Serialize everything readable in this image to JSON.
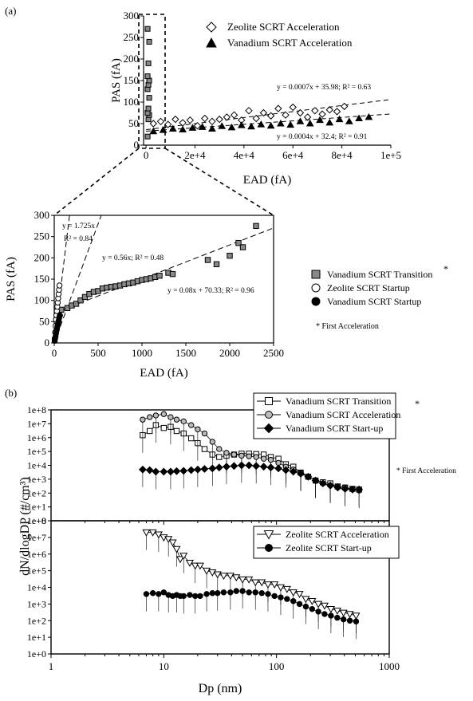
{
  "panels": {
    "a_label": "(a)",
    "b_label": "(b)"
  },
  "chart_data": [
    {
      "id": "a_top",
      "type": "scatter",
      "xlabel": "EAD (fA)",
      "ylabel": "PAS (fA)",
      "xlim": [
        -1000,
        100000
      ],
      "ylim": [
        0,
        300
      ],
      "xticks": [
        "0",
        "2e+4",
        "4e+4",
        "6e+4",
        "8e+4",
        "1e+5"
      ],
      "yticks": [
        "0",
        "50",
        "100",
        "150",
        "200",
        "250",
        "300"
      ],
      "legend_position": "top-right",
      "series": [
        {
          "name": "Zeolite SCRT Acceleration",
          "marker": "open-diamond",
          "x": [
            3000,
            6000,
            9000,
            12000,
            15000,
            18000,
            21000,
            24000,
            27000,
            30000,
            33000,
            36000,
            39000,
            42000,
            45000,
            48000,
            51000,
            54000,
            57000,
            60000,
            63000,
            66000,
            69000,
            72000,
            75000,
            78000,
            81000
          ],
          "y": [
            50,
            55,
            48,
            60,
            52,
            58,
            45,
            62,
            55,
            60,
            65,
            70,
            58,
            80,
            62,
            75,
            68,
            85,
            70,
            88,
            75,
            65,
            80,
            72,
            82,
            78,
            90
          ]
        },
        {
          "name": "Vanadium SCRT Acceleration",
          "marker": "filled-triangle",
          "x": [
            3000,
            7000,
            11000,
            15000,
            19000,
            23000,
            27000,
            31000,
            35000,
            39000,
            43000,
            47000,
            51000,
            55000,
            59000,
            63000,
            67000,
            71000,
            75000,
            79000,
            83000,
            87000,
            91000
          ],
          "y": [
            32,
            35,
            38,
            36,
            40,
            42,
            38,
            44,
            41,
            46,
            43,
            48,
            45,
            50,
            47,
            55,
            50,
            58,
            52,
            60,
            55,
            62,
            65
          ]
        },
        {
          "name": "Vanadium SCRT Transition",
          "marker": "filled-square",
          "x": [
            0,
            50,
            100,
            150,
            200,
            300,
            500,
            700,
            1000,
            1300,
            1700,
            2100,
            2300
          ],
          "y": [
            20,
            60,
            70,
            75,
            85,
            110,
            130,
            140,
            150,
            160,
            190,
            240,
            270
          ]
        }
      ],
      "annotations": [
        "y = 0.0007x + 35.98; R² = 0.63",
        "y = 0.0004x + 32.4; R² = 0.91"
      ],
      "fits": [
        {
          "slope": 0.0007,
          "intercept": 35.98
        },
        {
          "slope": 0.0004,
          "intercept": 32.4
        }
      ]
    },
    {
      "id": "a_bottom",
      "type": "scatter",
      "xlabel": "EAD (fA)",
      "ylabel": "PAS (fA)",
      "xlim": [
        0,
        2500
      ],
      "ylim": [
        0,
        300
      ],
      "xticks": [
        "0",
        "500",
        "1000",
        "1500",
        "2000",
        "2500"
      ],
      "yticks": [
        "0",
        "50",
        "100",
        "150",
        "200",
        "250",
        "300"
      ],
      "legend_position": "right",
      "series": [
        {
          "name": "Vanadium SCRT Transition",
          "marker": "filled-square",
          "x": [
            80,
            150,
            200,
            250,
            300,
            350,
            400,
            450,
            500,
            550,
            600,
            650,
            700,
            750,
            800,
            850,
            900,
            950,
            1000,
            1050,
            1100,
            1150,
            1200,
            1300,
            1350,
            1750,
            1850,
            2000,
            2100,
            2150,
            2300
          ],
          "y": [
            78,
            82,
            88,
            92,
            100,
            108,
            115,
            120,
            122,
            128,
            130,
            132,
            133,
            135,
            138,
            140,
            142,
            145,
            148,
            150,
            152,
            155,
            158,
            165,
            162,
            195,
            185,
            205,
            235,
            225,
            275
          ]
        },
        {
          "name": "Zeolite SCRT Startup",
          "marker": "open-circle",
          "x": [
            5,
            10,
            15,
            20,
            25,
            30,
            35,
            40,
            45,
            50,
            55,
            60
          ],
          "y": [
            10,
            25,
            40,
            55,
            65,
            75,
            85,
            95,
            105,
            115,
            125,
            135
          ]
        },
        {
          "name": "Vanadium SCRT Startup",
          "marker": "filled-circle",
          "x": [
            5,
            10,
            15,
            20,
            25,
            30,
            35,
            40,
            45,
            50,
            55,
            60,
            65
          ],
          "y": [
            5,
            10,
            15,
            22,
            28,
            32,
            38,
            42,
            48,
            52,
            58,
            62,
            65
          ]
        }
      ],
      "annotations": [
        "y = 1.725x",
        "R² = 0.84",
        "y = 0.56x; R² = 0.48",
        "y = 0.08x + 70.33; R² = 0.96"
      ],
      "fits": [
        {
          "slope": 1.725,
          "intercept": 0
        },
        {
          "slope": 0.56,
          "intercept": 0
        },
        {
          "slope": 0.08,
          "intercept": 70.33
        }
      ],
      "footnote": "* First Acceleration"
    },
    {
      "id": "b_top",
      "type": "line",
      "xlabel": "Dp (nm)",
      "ylabel": "dN/dlogDP (#/cm³)",
      "xscale": "log",
      "yscale": "log",
      "xlim": [
        1,
        1000
      ],
      "ylim": [
        1,
        100000000
      ],
      "yticks": [
        "1e+0",
        "1e+1",
        "1e+2",
        "1e+3",
        "1e+4",
        "1e+5",
        "1e+6",
        "1e+7",
        "1e+8"
      ],
      "legend_position": "top",
      "series": [
        {
          "name": "Vanadium SCRT Transition",
          "marker": "open-square",
          "x": [
            6.5,
            7.5,
            8.5,
            10,
            11.5,
            13,
            15,
            17.5,
            20,
            23,
            27,
            31,
            36,
            42,
            49,
            57,
            66,
            77,
            89,
            104,
            121,
            141,
            164,
            191,
            222,
            258,
            300,
            349,
            406,
            472,
            540
          ],
          "y": [
            1500000,
            3000000,
            8000000,
            5000000,
            6000000,
            3000000,
            2000000,
            900000,
            400000,
            150000,
            60000,
            40000,
            50000,
            60000,
            70000,
            70000,
            65000,
            60000,
            40000,
            30000,
            12000,
            8000,
            3000,
            1500,
            800,
            600,
            500,
            300,
            250,
            200,
            180
          ]
        },
        {
          "name": "Vanadium SCRT Acceleration",
          "marker": "open-circle",
          "x": [
            6.5,
            7.5,
            8.5,
            10,
            11.5,
            13,
            15,
            17.5,
            20,
            23,
            27,
            31,
            36,
            42,
            49,
            57,
            66,
            77,
            89,
            104,
            121,
            141,
            164,
            191,
            222,
            258,
            300,
            349,
            406,
            472,
            540
          ],
          "y": [
            20000000,
            30000000,
            40000000,
            50000000,
            30000000,
            20000000,
            15000000,
            8000000,
            4000000,
            2000000,
            500000,
            150000,
            80000,
            60000,
            50000,
            45000,
            40000,
            30000,
            25000,
            15000,
            8000,
            5000,
            3000,
            1500,
            800,
            500,
            350,
            300,
            250,
            200,
            150
          ]
        },
        {
          "name": "Vanadium SCRT Start-up",
          "marker": "filled-diamond",
          "x": [
            6.5,
            7.5,
            8.5,
            10,
            11.5,
            13,
            15,
            17.5,
            20,
            23,
            27,
            31,
            36,
            42,
            49,
            57,
            66,
            77,
            89,
            104,
            121,
            141,
            164,
            191,
            222,
            258,
            300,
            349,
            406,
            472,
            540
          ],
          "y": [
            5000,
            4500,
            3500,
            3500,
            3500,
            3800,
            4000,
            4500,
            5000,
            5500,
            6000,
            7000,
            8000,
            9000,
            10000,
            10000,
            9000,
            8000,
            7000,
            6000,
            4500,
            3500,
            2500,
            1500,
            800,
            500,
            350,
            250,
            200,
            180,
            180
          ]
        }
      ],
      "footnote": "* First Acceleration"
    },
    {
      "id": "b_bottom",
      "type": "line",
      "xlabel": "Dp (nm)",
      "ylabel": "dN/dlogDP (#/cm³)",
      "xscale": "log",
      "yscale": "log",
      "xlim": [
        1,
        1000
      ],
      "ylim": [
        1,
        100000000
      ],
      "xticks": [
        "1",
        "10",
        "100",
        "1000"
      ],
      "yticks": [
        "1e+0",
        "1e+1",
        "1e+2",
        "1e+3",
        "1e+4",
        "1e+5",
        "1e+6",
        "1e+7",
        "1e+8"
      ],
      "legend_position": "top",
      "series": [
        {
          "name": "Zeolite SCRT Acceleration",
          "marker": "open-triangle-down",
          "x": [
            7,
            8,
            9,
            10,
            11,
            12,
            13,
            14,
            15,
            17,
            19,
            21,
            24,
            27,
            30,
            34,
            39,
            44,
            50,
            57,
            65,
            74,
            84,
            96,
            109,
            124,
            141,
            160,
            182,
            207,
            235,
            267,
            304,
            346,
            393,
            447,
            508
          ],
          "y": [
            20000000,
            20000000,
            15000000,
            10000000,
            8000000,
            5000000,
            2000000,
            500000,
            800000,
            300000,
            200000,
            200000,
            100000,
            80000,
            60000,
            50000,
            50000,
            40000,
            30000,
            30000,
            20000,
            20000,
            15000,
            15000,
            10000,
            8000,
            5000,
            4000,
            2000,
            1500,
            1000,
            800,
            500,
            400,
            300,
            250,
            200
          ]
        },
        {
          "name": "Zeolite SCRT Start-up",
          "marker": "filled-circle",
          "x": [
            7,
            8,
            9,
            10,
            11,
            12,
            13,
            14,
            15,
            17,
            19,
            21,
            24,
            27,
            30,
            34,
            39,
            44,
            50,
            57,
            65,
            74,
            84,
            96,
            109,
            124,
            141,
            160,
            182,
            207,
            235,
            267,
            304,
            346,
            393,
            447,
            508
          ],
          "y": [
            4000,
            4500,
            4000,
            5000,
            3500,
            3000,
            3500,
            3000,
            3000,
            3500,
            3000,
            3000,
            4000,
            4500,
            4500,
            5000,
            5000,
            6000,
            6000,
            5000,
            5000,
            4500,
            4000,
            3000,
            2500,
            2000,
            1500,
            1000,
            700,
            500,
            350,
            250,
            200,
            150,
            120,
            100,
            90
          ]
        }
      ]
    }
  ]
}
